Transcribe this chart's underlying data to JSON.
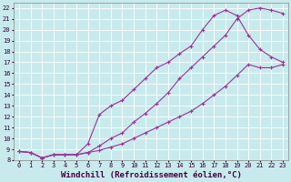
{
  "xlabel": "Windchill (Refroidissement éolien,°C)",
  "bg_color": "#c8eaec",
  "grid_color": "#ffffff",
  "line_color": "#993399",
  "xlim": [
    -0.5,
    23.5
  ],
  "ylim": [
    8,
    22.5
  ],
  "xticks": [
    0,
    1,
    2,
    3,
    4,
    5,
    6,
    7,
    8,
    9,
    10,
    11,
    12,
    13,
    14,
    15,
    16,
    17,
    18,
    19,
    20,
    21,
    22,
    23
  ],
  "yticks": [
    8,
    9,
    10,
    11,
    12,
    13,
    14,
    15,
    16,
    17,
    18,
    19,
    20,
    21,
    22
  ],
  "line1_x": [
    0,
    1,
    2,
    3,
    4,
    5,
    6,
    7,
    8,
    9,
    10,
    11,
    12,
    13,
    14,
    15,
    16,
    17,
    18,
    19,
    20,
    21,
    22,
    23
  ],
  "line1_y": [
    8.8,
    8.7,
    8.2,
    8.5,
    8.5,
    8.5,
    8.7,
    9.3,
    10.0,
    10.5,
    11.5,
    12.3,
    13.2,
    14.2,
    15.5,
    16.5,
    17.5,
    18.5,
    19.5,
    21.0,
    21.8,
    22.0,
    21.8,
    21.5
  ],
  "line2_x": [
    0,
    1,
    2,
    3,
    4,
    5,
    6,
    7,
    8,
    9,
    10,
    11,
    12,
    13,
    14,
    15,
    16,
    17,
    18,
    19,
    20,
    21,
    22,
    23
  ],
  "line2_y": [
    8.8,
    8.7,
    8.2,
    8.5,
    8.5,
    8.5,
    9.5,
    12.2,
    13.0,
    13.5,
    14.5,
    15.5,
    16.5,
    17.0,
    17.8,
    18.5,
    20.0,
    21.3,
    21.8,
    21.3,
    19.5,
    18.2,
    17.5,
    17.0
  ],
  "line3_x": [
    0,
    1,
    2,
    3,
    4,
    5,
    6,
    7,
    8,
    9,
    10,
    11,
    12,
    13,
    14,
    15,
    16,
    17,
    18,
    19,
    20,
    21,
    22,
    23
  ],
  "line3_y": [
    8.8,
    8.7,
    8.2,
    8.5,
    8.5,
    8.5,
    8.7,
    8.9,
    9.2,
    9.5,
    10.0,
    10.5,
    11.0,
    11.5,
    12.0,
    12.5,
    13.2,
    14.0,
    14.8,
    15.8,
    16.8,
    16.5,
    16.5,
    16.8
  ],
  "marker": "P",
  "markersize": 2.5,
  "linewidth": 0.8,
  "xlabel_fontsize": 6.5,
  "tick_fontsize": 5.0
}
